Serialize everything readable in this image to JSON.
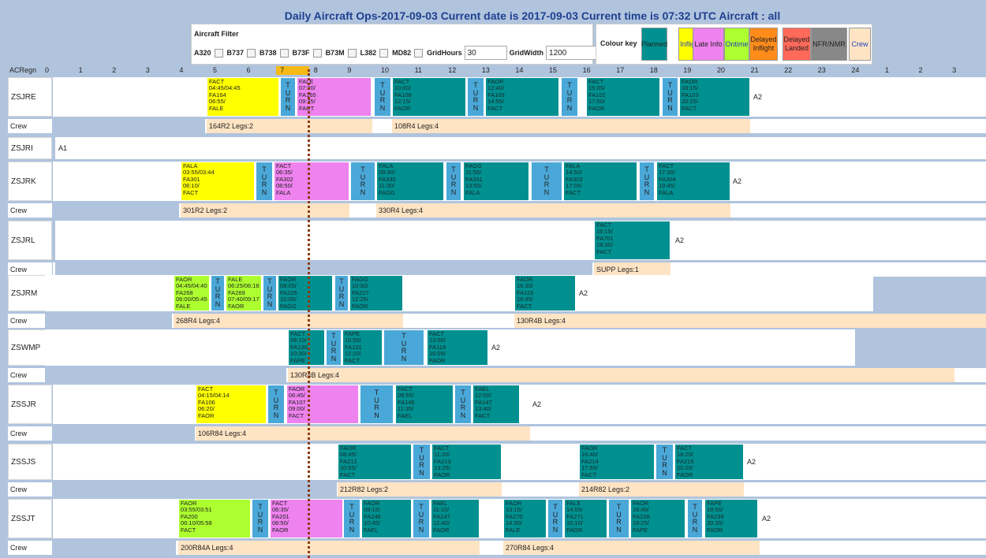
{
  "title": "Daily Aircraft Ops-2017-09-03 Current date is 2017-09-03 Current time is 07:32 UTC Aircraft : all",
  "filter": {
    "title": "Aircraft Filter",
    "types": [
      "A320",
      "B737",
      "B738",
      "B73F",
      "B73M",
      "L382",
      "MD82"
    ],
    "gridhours_label": "GridHours",
    "gridhours_value": "30",
    "gridwidth_label": "GridWidth",
    "gridwidth_value": "1200",
    "apply_icon": "check-circle-icon"
  },
  "colour_key": {
    "label": "Colour key",
    "items": [
      {
        "label": "Planned",
        "color": "#009090"
      },
      {
        "label": "Inflight",
        "color": "#ffff00"
      },
      {
        "label": "Late Info",
        "color": "#ee82ee"
      },
      {
        "label": "Ontime",
        "color": "#adff2f"
      },
      {
        "label": "Delayed Inflight",
        "color": "#ff8c1a"
      },
      {
        "label": "Delayed Landed",
        "color": "#ff6a5a"
      },
      {
        "label": "NFR/NMR",
        "color": "#888888"
      },
      {
        "label": "Crew",
        "color": "#ffe4c4"
      }
    ]
  },
  "axis": {
    "label": "ACRegn",
    "hours": [
      "0",
      "1",
      "2",
      "3",
      "4",
      "5",
      "6",
      "7",
      "8",
      "9",
      "10",
      "11",
      "12",
      "13",
      "14",
      "15",
      "16",
      "17",
      "18",
      "19",
      "20",
      "21",
      "22",
      "23",
      "24",
      "1",
      "2",
      "3"
    ],
    "current_hour": "7"
  },
  "crew_label": "Crew",
  "rows": [
    {
      "reg": "ZSJRE",
      "a2": "A2",
      "legs": [
        {
          "k": "i",
          "t": "FACT 04:45/04:45 FA164 06:55/ FALE"
        },
        {
          "k": "t",
          "t": "TURN"
        },
        {
          "k": "l",
          "t": "FALE 07:20/ FA165 09:35/ FACT"
        },
        {
          "k": "t",
          "t": "TURN"
        },
        {
          "k": "p",
          "t": "FACT 10:00/ FA108 12:15/ FAOR"
        },
        {
          "k": "t",
          "t": "TURN"
        },
        {
          "k": "p",
          "t": "FAOR 12:40/ FA109 14:55/ FACT"
        },
        {
          "k": "t",
          "t": "TURN"
        },
        {
          "k": "p",
          "t": "FACT 15:35/ FA102 17:50/ FAOR"
        },
        {
          "k": "t",
          "t": "TURN"
        },
        {
          "k": "p",
          "t": "FAOR 18:15/ FA103 20:25/ FACT"
        }
      ],
      "crew": [
        {
          "c": "b",
          "t": ""
        },
        {
          "c": "p",
          "t": "164R2 Legs:2"
        },
        {
          "c": "p",
          "t": "108R4 Legs:4"
        }
      ]
    },
    {
      "reg": "ZSJRI",
      "a2": "A1",
      "legs": [],
      "crew": []
    },
    {
      "reg": "ZSJRK",
      "a2": "A2",
      "legs": [
        {
          "k": "i",
          "t": "FALA 03:55/03:44 FA301 06:10/ FACT"
        },
        {
          "k": "t",
          "t": "TURN"
        },
        {
          "k": "l",
          "t": "FACT 06:35/ FA302 08:50/ FALA"
        },
        {
          "k": "t",
          "t": "TURN"
        },
        {
          "k": "p",
          "t": "FALA 09:30/ FA330 11:30/ FAGG"
        },
        {
          "k": "t",
          "t": "TURN"
        },
        {
          "k": "p",
          "t": "FAGG 11:55/ FA331 13:55/ FALA"
        },
        {
          "k": "t",
          "t": "TURN"
        },
        {
          "k": "p",
          "t": "FALA 14:50/ FA303 17:05/ FACT"
        },
        {
          "k": "t",
          "t": "TURN"
        },
        {
          "k": "p",
          "t": "FACT 17:30/ FA304 19:45/ FALA"
        }
      ],
      "crew": [
        {
          "c": "b",
          "t": ""
        },
        {
          "c": "p",
          "t": "301R2 Legs:2"
        },
        {
          "c": "p",
          "t": "330R4 Legs:4"
        }
      ]
    },
    {
      "reg": "ZSJRL",
      "a2": "A2",
      "legs": [
        {
          "k": "p",
          "t": "FACT 16:15/ FA701 18:30/ FACT"
        }
      ],
      "crew": [
        {
          "c": "b",
          "t": ""
        },
        {
          "c": "p",
          "t": "SUPP Legs:1"
        }
      ]
    },
    {
      "reg": "ZSJRM",
      "a2": "A2",
      "legs": [
        {
          "k": "o",
          "t": "FAOR 04:45/04:40 FA268 06:00/05:45 FALE"
        },
        {
          "k": "t",
          "t": "TURN"
        },
        {
          "k": "o",
          "t": "FALE 06:25/06:18 FA269 07:40/09:17 FAOR"
        },
        {
          "k": "t",
          "t": "TURN"
        },
        {
          "k": "p",
          "t": "FAOR 08:05/ FA226 10:05/ FAGG"
        },
        {
          "k": "t",
          "t": "TURN"
        },
        {
          "k": "p",
          "t": "FAGG 10:30/ FA227 12:25/ FAOR"
        },
        {
          "k": "p",
          "t": "FAOR 16:30/ FA119 18:45/ FACT"
        }
      ],
      "crew": [
        {
          "c": "b",
          "t": ""
        },
        {
          "c": "p",
          "t": "268R4 Legs:4"
        },
        {
          "c": "p",
          "t": "130R4B Legs:4"
        }
      ]
    },
    {
      "reg": "ZSWMP",
      "a2": "A2",
      "legs": [
        {
          "k": "p",
          "t": "FACT 08:10/ FA130 10:30/ FAPE"
        },
        {
          "k": "t",
          "t": "TURN"
        },
        {
          "k": "p",
          "t": "FAPE 10:55/ FA131 12:20/ FACT"
        },
        {
          "k": "t",
          "t": "TURN"
        },
        {
          "k": "p",
          "t": "FACT 13:50/ FA118 16:05/ FAOR"
        }
      ],
      "crew": [
        {
          "c": "b",
          "t": ""
        },
        {
          "c": "p",
          "t": "130R4B Legs:4"
        }
      ]
    },
    {
      "reg": "ZSSJR",
      "a2": "A2",
      "legs": [
        {
          "k": "i",
          "t": "FACT 04:15/04:14 FA106 06:20/ FAOR"
        },
        {
          "k": "t",
          "t": "TURN"
        },
        {
          "k": "l",
          "t": "FAOR 06:45/ FA107 09:00/ FACT"
        },
        {
          "k": "t",
          "t": "TURN"
        },
        {
          "k": "p",
          "t": "FACT 09:55/ FA146 11:35/ FAEL"
        },
        {
          "k": "t",
          "t": "TURN"
        },
        {
          "k": "p",
          "t": "FAEL 12:00/ FA147 13:40/ FACT"
        }
      ],
      "crew": [
        {
          "c": "b",
          "t": ""
        },
        {
          "c": "p",
          "t": "106R84 Legs:4"
        }
      ]
    },
    {
      "reg": "ZSSJS",
      "a2": "A2",
      "legs": [
        {
          "k": "p",
          "t": "FAOR 08:45/ FA212 10:55/ FACT"
        },
        {
          "k": "t",
          "t": "TURN"
        },
        {
          "k": "p",
          "t": "FACT 11:20/ FA213 13:25/ FAOR"
        },
        {
          "k": "p",
          "t": "FAOR 16:40/ FA214 17:55/ FACT"
        },
        {
          "k": "t",
          "t": "TURN"
        },
        {
          "k": "p",
          "t": "FACT 18:20/ FA215 20:25/ FAOR"
        }
      ],
      "crew": [
        {
          "c": "b",
          "t": ""
        },
        {
          "c": "p",
          "t": "212R82 Legs:2"
        },
        {
          "c": "p",
          "t": "214R82 Legs:2"
        }
      ]
    },
    {
      "reg": "ZSSJT",
      "a2": "A2",
      "legs": [
        {
          "k": "o",
          "t": "FAOR 03:55/03:51 FA200 06:10/05:58 FACT"
        },
        {
          "k": "t",
          "t": "TURN"
        },
        {
          "k": "l",
          "t": "FACT 06:35/ FA201 08:50/ FAOR"
        },
        {
          "k": "t",
          "t": "TURN"
        },
        {
          "k": "p",
          "t": "FAOR 09:15/ FA246 10:45/ FAEL"
        },
        {
          "k": "t",
          "t": "TURN"
        },
        {
          "k": "p",
          "t": "FAEL 11:10/ FA247 12:40/ FAOR"
        },
        {
          "k": "p",
          "t": "FAOR 13:15/ FA270 14:30/ FALE"
        },
        {
          "k": "t",
          "t": "TURN"
        },
        {
          "k": "p",
          "t": "FALE 14:55/ FA271 16:10/ FAOR"
        },
        {
          "k": "t",
          "t": "TURN"
        },
        {
          "k": "p",
          "t": "FAOR 16:45/ FA238 18:25/ FAPE"
        },
        {
          "k": "t",
          "t": "TURN"
        },
        {
          "k": "p",
          "t": "FAPE 18:50/ FA239 20:35/ FAOR"
        }
      ],
      "crew": [
        {
          "c": "b",
          "t": ""
        },
        {
          "c": "p",
          "t": "200R84A Legs:4"
        },
        {
          "c": "p",
          "t": "270R84 Legs:4"
        }
      ]
    }
  ]
}
